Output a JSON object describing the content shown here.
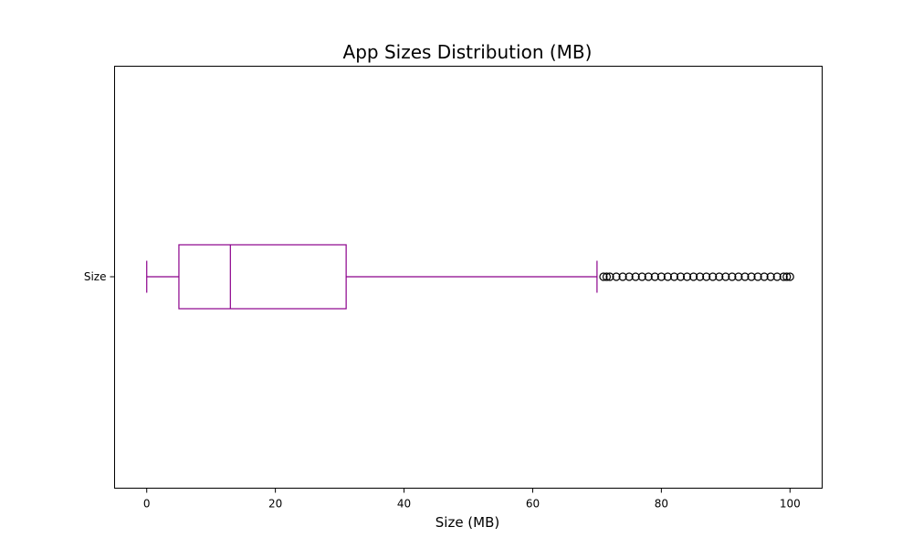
{
  "chart_data": {
    "type": "boxplot",
    "orientation": "horizontal",
    "title": "App Sizes Distribution (MB)",
    "xlabel": "Size (MB)",
    "ylabel": "",
    "xlim": [
      -5,
      105
    ],
    "xticks": [
      0,
      20,
      40,
      60,
      80,
      100
    ],
    "categories": [
      "Size"
    ],
    "box": {
      "whisker_low": 0,
      "q1": 5,
      "median": 13,
      "q3": 31,
      "whisker_high": 70
    },
    "outliers": [
      71,
      71.5,
      72,
      73,
      74,
      75,
      76,
      77,
      78,
      79,
      80,
      81,
      82,
      83,
      84,
      85,
      86,
      87,
      88,
      89,
      90,
      91,
      92,
      93,
      94,
      95,
      96,
      97,
      98,
      99,
      99.5,
      100
    ],
    "box_color": "#8b008b",
    "outlier_color": "#000000",
    "grid": false,
    "legend": "none"
  }
}
